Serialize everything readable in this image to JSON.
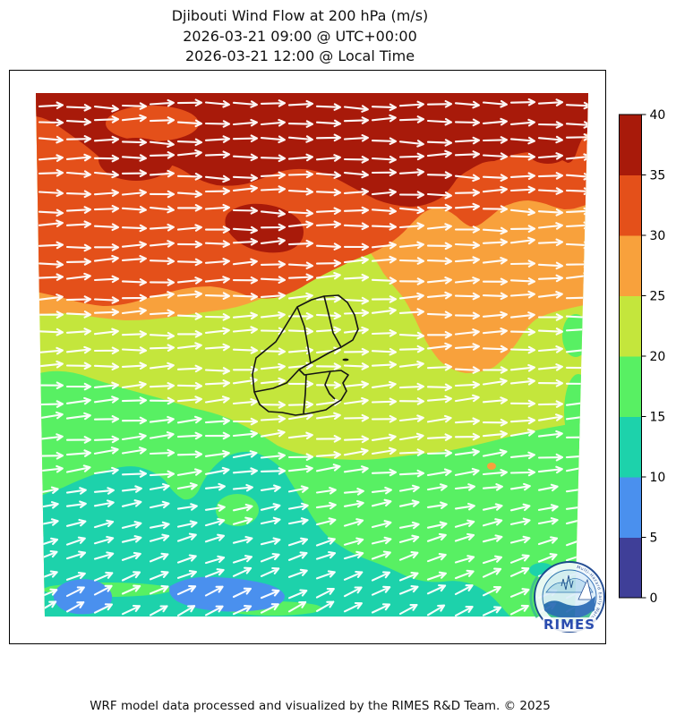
{
  "header": {
    "title": "Djibouti Wind Flow at 200 hPa (m/s)",
    "subtitle_utc": "2026-03-21 09:00 @ UTC+00:00",
    "subtitle_local": "2026-03-21 12:00 @ Local Time"
  },
  "footer": {
    "credit": "WRF model data processed and visualized by the RIMES R&D Team. © 2025"
  },
  "colorbar": {
    "unit": "m/s",
    "ticks": [
      "0",
      "5",
      "10",
      "15",
      "20",
      "25",
      "30",
      "35",
      "40"
    ],
    "levels": [
      0,
      5,
      10,
      15,
      20,
      25,
      30,
      35,
      40
    ],
    "colors": [
      "#3f3f98",
      "#4a90ee",
      "#1dd2ab",
      "#58f063",
      "#c4e63c",
      "#f8a13c",
      "#e4501a",
      "#a81a0a"
    ]
  },
  "logo": {
    "name": "RIMES",
    "ring_text": "Multi-Hazard Early Warning System"
  },
  "chart_data": {
    "type": "heatmap",
    "title": "Djibouti Wind Flow at 200 hPa (m/s)",
    "subtitles": [
      "2026-03-21 09:00 @ UTC+00:00",
      "2026-03-21 12:00 @ Local Time"
    ],
    "variable": "wind speed",
    "unit": "m/s",
    "pressure_level_hPa": 200,
    "colorbar_levels": [
      0,
      5,
      10,
      15,
      20,
      25,
      30,
      35,
      40
    ],
    "colorbar_colors": [
      "#3f3f98",
      "#4a90ee",
      "#1dd2ab",
      "#58f063",
      "#c4e63c",
      "#f8a13c",
      "#e4501a",
      "#a81a0a"
    ],
    "speed_bands_north_to_south": [
      {
        "band_m_s": "35-40",
        "coverage": "narrow strip along the northern edge with wavy lobes dipping south, plus isolated pockets"
      },
      {
        "band_m_s": "30-35",
        "coverage": "broad band across the north, bottom edge very wavy with fingers into the band below"
      },
      {
        "band_m_s": "25-30",
        "coverage": "north-central band; large lobe dipping southeast of center; thin along right edge"
      },
      {
        "band_m_s": "20-25",
        "coverage": "central belt surrounding the Djibouti boundary overlay"
      },
      {
        "band_m_s": "15-20",
        "coverage": "south-central belt, also small patches along the eastern edge"
      },
      {
        "band_m_s": "10-15",
        "coverage": "southern belt with green islands inside it"
      },
      {
        "band_m_s": "5-10",
        "coverage": "two small pockets at the extreme south edge"
      },
      {
        "band_m_s": "0-5",
        "coverage": "not present on map (colorbar only)"
      }
    ],
    "flow": "westerly flow, white arrows pointing east; arrows veer to point northeast (southwesterly flow) toward the southern edge",
    "overlay": "Djibouti national and regional administrative boundaries drawn in black at map center"
  }
}
